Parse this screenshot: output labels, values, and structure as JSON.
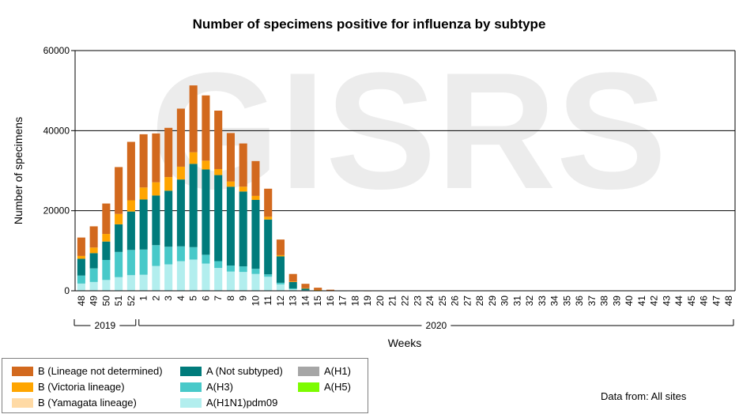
{
  "chart_data": {
    "type": "bar",
    "stacked": true,
    "title": "Number of specimens positive for influenza by subtype",
    "xlabel": "Weeks",
    "ylabel": "Number of specimens",
    "ylim": [
      0,
      60000
    ],
    "yticks": [
      "0",
      "20000",
      "40000",
      "60000"
    ],
    "grid": true,
    "watermark": "GISRS",
    "categories": [
      "48",
      "49",
      "50",
      "51",
      "52",
      "1",
      "2",
      "3",
      "4",
      "5",
      "6",
      "7",
      "8",
      "9",
      "10",
      "11",
      "12",
      "13",
      "14",
      "15",
      "16",
      "17",
      "18",
      "19",
      "20",
      "21",
      "22",
      "23",
      "24",
      "25",
      "26",
      "27",
      "28",
      "29",
      "30",
      "31",
      "32",
      "33",
      "34",
      "35",
      "36",
      "37",
      "38",
      "39",
      "40",
      "41",
      "42",
      "43",
      "44",
      "45",
      "46",
      "47",
      "48"
    ],
    "year_groups": [
      {
        "label": "2019",
        "from": 0,
        "to": 4
      },
      {
        "label": "2020",
        "from": 5,
        "to": 52
      }
    ],
    "series": [
      {
        "name": "A(H1N1)pdm09",
        "color": "#b2eeee",
        "values": [
          1800,
          2200,
          2700,
          3400,
          3900,
          4000,
          6200,
          6600,
          7400,
          7800,
          6800,
          5700,
          4800,
          4700,
          4200,
          3500,
          1600,
          400,
          120,
          40,
          15,
          5,
          0,
          0,
          0,
          0,
          0,
          0,
          0,
          0,
          0,
          0,
          0,
          0,
          0,
          0,
          0,
          0,
          0,
          0,
          0,
          0,
          0,
          0,
          0,
          0,
          0,
          0,
          0,
          0,
          0,
          0,
          0
        ]
      },
      {
        "name": "A(H3)",
        "color": "#48c9c9",
        "values": [
          2000,
          3400,
          5000,
          6300,
          6300,
          6300,
          5200,
          4400,
          3700,
          3100,
          2200,
          1700,
          1500,
          1400,
          1300,
          600,
          400,
          200,
          80,
          30,
          10,
          0,
          0,
          0,
          0,
          0,
          0,
          0,
          0,
          0,
          0,
          0,
          0,
          0,
          0,
          0,
          0,
          0,
          0,
          0,
          0,
          0,
          0,
          0,
          0,
          0,
          0,
          0,
          0,
          0,
          0,
          0,
          0
        ]
      },
      {
        "name": "A(Not subtyped)",
        "color": "#007b7b",
        "values": [
          4200,
          3800,
          4600,
          6900,
          9600,
          12500,
          12400,
          14000,
          16700,
          20800,
          21300,
          21500,
          19700,
          18700,
          17200,
          13700,
          6600,
          1600,
          400,
          120,
          40,
          10,
          5,
          0,
          0,
          0,
          0,
          0,
          0,
          0,
          0,
          0,
          0,
          0,
          0,
          0,
          0,
          0,
          0,
          0,
          0,
          0,
          0,
          0,
          0,
          0,
          0,
          0,
          0,
          0,
          0,
          0,
          0
        ]
      },
      {
        "name": "A(H1)",
        "color": "#a6a6a6",
        "values": [
          0,
          0,
          0,
          0,
          0,
          0,
          0,
          0,
          0,
          0,
          0,
          0,
          0,
          0,
          0,
          0,
          0,
          0,
          0,
          0,
          0,
          0,
          0,
          0,
          0,
          0,
          0,
          0,
          0,
          0,
          0,
          0,
          0,
          0,
          0,
          0,
          0,
          0,
          0,
          0,
          0,
          0,
          0,
          0,
          0,
          0,
          0,
          0,
          0,
          0,
          0,
          0,
          0
        ]
      },
      {
        "name": "A(H5)",
        "color": "#7cfc00",
        "values": [
          0,
          0,
          0,
          0,
          0,
          0,
          0,
          0,
          0,
          0,
          0,
          0,
          0,
          0,
          0,
          0,
          0,
          0,
          0,
          0,
          0,
          0,
          0,
          0,
          0,
          0,
          0,
          0,
          0,
          0,
          0,
          0,
          0,
          0,
          0,
          0,
          0,
          0,
          0,
          0,
          0,
          0,
          0,
          0,
          0,
          0,
          0,
          0,
          0,
          0,
          0,
          0,
          0
        ]
      },
      {
        "name": "B (Yamagata lineage)",
        "color": "#ffdaa5",
        "values": [
          0,
          0,
          0,
          0,
          0,
          0,
          0,
          0,
          0,
          0,
          0,
          0,
          0,
          0,
          0,
          0,
          0,
          0,
          0,
          0,
          0,
          0,
          0,
          0,
          0,
          0,
          0,
          0,
          0,
          0,
          0,
          0,
          0,
          0,
          0,
          0,
          0,
          0,
          0,
          0,
          0,
          0,
          0,
          0,
          0,
          0,
          0,
          0,
          0,
          0,
          0,
          0,
          0
        ]
      },
      {
        "name": "B (Victoria lineage)",
        "color": "#ffa500",
        "values": [
          700,
          1400,
          1900,
          2600,
          2800,
          3000,
          3300,
          3400,
          3200,
          2900,
          2200,
          1500,
          1300,
          1200,
          1000,
          700,
          300,
          100,
          40,
          20,
          5,
          0,
          0,
          0,
          0,
          0,
          0,
          0,
          0,
          0,
          0,
          0,
          0,
          0,
          0,
          0,
          0,
          0,
          0,
          0,
          0,
          0,
          0,
          0,
          0,
          0,
          0,
          0,
          0,
          0,
          0,
          0,
          0
        ]
      },
      {
        "name": "B (Lineage not determined)",
        "color": "#d2691e",
        "values": [
          4600,
          5300,
          7600,
          11700,
          14600,
          13300,
          12200,
          12300,
          14500,
          16700,
          16300,
          14600,
          12100,
          10800,
          8700,
          7000,
          3900,
          1900,
          1100,
          560,
          200,
          60,
          20,
          5,
          0,
          0,
          0,
          0,
          0,
          0,
          0,
          0,
          0,
          0,
          0,
          0,
          0,
          0,
          0,
          0,
          0,
          0,
          0,
          0,
          0,
          0,
          0,
          0,
          0,
          0,
          0,
          0,
          0
        ]
      }
    ]
  },
  "legend": [
    {
      "label": "B (Lineage not determined)",
      "color": "#d2691e"
    },
    {
      "label": "B (Victoria lineage)",
      "color": "#ffa500"
    },
    {
      "label": "B (Yamagata lineage)",
      "color": "#ffdaa5"
    },
    {
      "label": "A (Not subtyped)",
      "color": "#007b7b"
    },
    {
      "label": "A(H3)",
      "color": "#48c9c9"
    },
    {
      "label": "A(H1N1)pdm09",
      "color": "#b2eeee"
    },
    {
      "label": "A(H1)",
      "color": "#a6a6a6"
    },
    {
      "label": "A(H5)",
      "color": "#7cfc00"
    }
  ],
  "source_note": "Data from: All sites"
}
